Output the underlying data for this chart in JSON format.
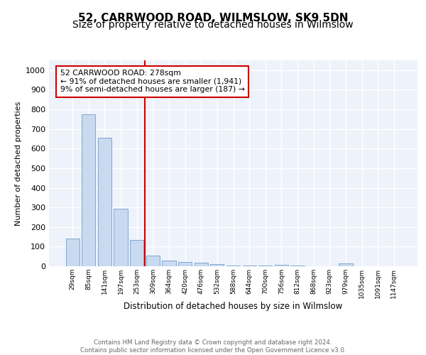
{
  "title1": "52, CARRWOOD ROAD, WILMSLOW, SK9 5DN",
  "title2": "Size of property relative to detached houses in Wilmslow",
  "xlabel": "Distribution of detached houses by size in Wilmslow",
  "ylabel": "Number of detached properties",
  "bar_labels": [
    "29sqm",
    "85sqm",
    "141sqm",
    "197sqm",
    "253sqm",
    "309sqm",
    "364sqm",
    "420sqm",
    "476sqm",
    "532sqm",
    "588sqm",
    "644sqm",
    "700sqm",
    "756sqm",
    "812sqm",
    "868sqm",
    "923sqm",
    "979sqm",
    "1035sqm",
    "1091sqm",
    "1147sqm"
  ],
  "bar_values": [
    140,
    775,
    655,
    295,
    135,
    55,
    28,
    22,
    18,
    10,
    5,
    4,
    3,
    7,
    2,
    0,
    0,
    13,
    0,
    0,
    0
  ],
  "bar_color": "#c9d9f0",
  "bar_edge_color": "#7fa8d0",
  "vline_x": 4.5,
  "vline_color": "#cc0000",
  "annotation_text": "52 CARRWOOD ROAD: 278sqm\n← 91% of detached houses are smaller (1,941)\n9% of semi-detached houses are larger (187) →",
  "annotation_box_color": "#cc0000",
  "ylim": [
    0,
    1050
  ],
  "yticks": [
    0,
    100,
    200,
    300,
    400,
    500,
    600,
    700,
    800,
    900,
    1000
  ],
  "background_color": "#eef2fb",
  "grid_color": "#ffffff",
  "footer_text": "Contains HM Land Registry data © Crown copyright and database right 2024.\nContains public sector information licensed under the Open Government Licence v3.0.",
  "title_fontsize": 11,
  "subtitle_fontsize": 10
}
